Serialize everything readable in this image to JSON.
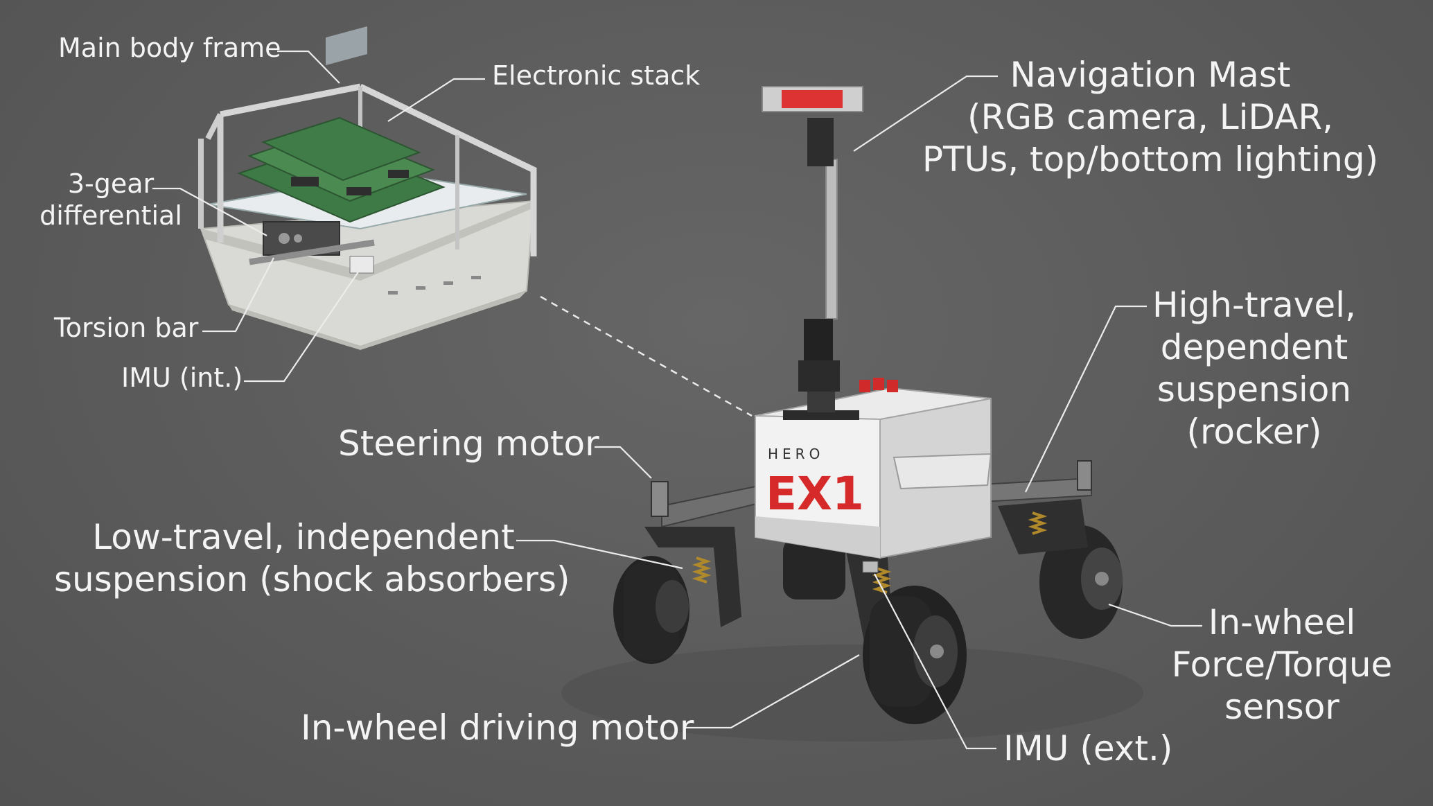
{
  "labels": {
    "main_body_frame": "Main body frame",
    "electronic_stack": "Electronic stack",
    "gear_diff_line1": "3-gear",
    "gear_diff_line2": "differential",
    "torsion_bar": "Torsion bar",
    "imu_int": "IMU (int.)",
    "nav_mast_line1": "Navigation Mast",
    "nav_mast_line2": "(RGB camera, LiDAR,",
    "nav_mast_line3": "PTUs, top/bottom lighting)",
    "high_travel_line1": "High-travel,",
    "high_travel_line2": "dependent",
    "high_travel_line3": "suspension",
    "high_travel_line4": "(rocker)",
    "steering_motor": "Steering motor",
    "low_travel_line1": "Low-travel, independent",
    "low_travel_line2": "suspension (shock absorbers)",
    "in_wheel_ft_line1": "In-wheel",
    "in_wheel_ft_line2": "Force/Torque",
    "in_wheel_ft_line3": "sensor",
    "in_wheel_motor": "In-wheel driving motor",
    "imu_ext": "IMU (ext.)"
  },
  "rover_branding": {
    "logo_small": "HERO",
    "logo_big": "EX1",
    "accent_color": "#d62a2a"
  }
}
